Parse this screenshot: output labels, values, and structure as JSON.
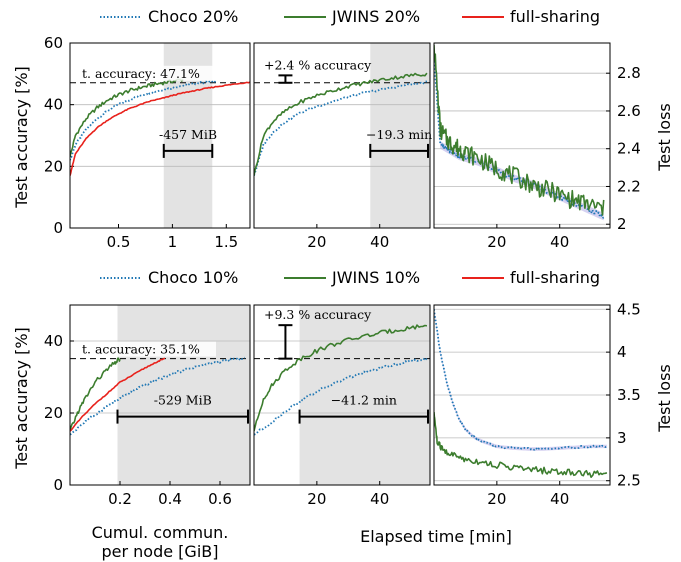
{
  "chart_data": [
    {
      "type": "line",
      "panel": "top-left",
      "xlabel": "",
      "ylabel": "Test accuracy [%]",
      "xlim": [
        0.05,
        1.72
      ],
      "ylim": [
        0,
        60
      ],
      "xticks": [
        "0.5",
        "1",
        "1.5"
      ],
      "xtick_values": [
        0.5,
        1,
        1.5
      ],
      "yticks": [
        "0",
        "20",
        "40",
        "60"
      ],
      "ytick_values": [
        0,
        20,
        40,
        60
      ],
      "grid": true,
      "series": [
        {
          "name": "Choco 20%",
          "x": [
            0.05,
            0.1,
            0.2,
            0.3,
            0.4,
            0.5,
            0.6,
            0.7,
            0.8,
            0.9,
            1.0,
            1.1,
            1.2,
            1.3,
            1.4
          ],
          "y": [
            22,
            27,
            32,
            35.5,
            38,
            40,
            41.5,
            43,
            44,
            44.8,
            45.5,
            46.2,
            46.8,
            47.2,
            47.6
          ]
        },
        {
          "name": "JWINS 20%",
          "x": [
            0.05,
            0.1,
            0.2,
            0.3,
            0.4,
            0.5,
            0.6,
            0.7,
            0.8,
            0.9,
            1.0,
            1.1
          ],
          "y": [
            23,
            30,
            35.5,
            39,
            41.5,
            43.2,
            44.5,
            45.5,
            46.3,
            47,
            47.6,
            48.2
          ]
        },
        {
          "name": "full-sharing",
          "x": [
            0.05,
            0.1,
            0.2,
            0.3,
            0.4,
            0.5,
            0.6,
            0.7,
            0.8,
            0.9,
            1.0,
            1.1,
            1.2,
            1.3,
            1.4,
            1.5,
            1.6,
            1.72
          ],
          "y": [
            17,
            24,
            29,
            32.5,
            35,
            37,
            38.7,
            40,
            41.2,
            42,
            43,
            43.8,
            44.5,
            45.2,
            45.8,
            46.3,
            46.8,
            47.3
          ]
        }
      ],
      "shade_x": [
        0.92,
        1.37
      ],
      "threshold_y": 47.1,
      "threshold_label": "t. accuracy: 47.1%",
      "savings_label": "-457 MiB",
      "savings_x": [
        0.92,
        1.37
      ],
      "savings_y": 25
    },
    {
      "type": "line",
      "panel": "top-middle",
      "xlabel": "",
      "ylabel": "",
      "xlim": [
        0,
        56
      ],
      "ylim": [
        0,
        60
      ],
      "xticks": [
        "20",
        "40"
      ],
      "xtick_values": [
        20,
        40
      ],
      "grid": true,
      "series": [
        {
          "name": "Choco 20%",
          "x": [
            0,
            3,
            6,
            10,
            15,
            20,
            25,
            30,
            35,
            40,
            45,
            50,
            55
          ],
          "y": [
            17,
            27,
            31,
            34.5,
            37.5,
            39.5,
            41,
            42.5,
            43.8,
            44.8,
            45.8,
            46.6,
            47.2
          ]
        },
        {
          "name": "JWINS 20%",
          "x": [
            0,
            3,
            6,
            10,
            15,
            20,
            25,
            30,
            35,
            40,
            45,
            50,
            55
          ],
          "y": [
            17,
            30,
            34.5,
            38,
            41,
            43,
            44.5,
            46,
            47,
            48,
            48.8,
            49.5,
            50
          ]
        }
      ],
      "shade_x": [
        37,
        56
      ],
      "threshold_y": 47.1,
      "gain_label": "+2.4 % accuracy",
      "gain_x": 10,
      "gain_y": [
        47.1,
        49.5
      ],
      "savings_label": "−19.3 min",
      "savings_x": [
        37,
        56
      ],
      "savings_y": 25
    },
    {
      "type": "line",
      "panel": "top-right",
      "xlabel": "",
      "ylabel": "Test loss",
      "xlim": [
        0,
        56
      ],
      "ylim": [
        1.98,
        2.96
      ],
      "xticks": [
        "20",
        "40"
      ],
      "xtick_values": [
        20,
        40
      ],
      "yticks": [
        "2",
        "2.2",
        "2.4",
        "2.6",
        "2.8"
      ],
      "ytick_values": [
        2,
        2.2,
        2.4,
        2.6,
        2.8
      ],
      "y_axis_side": "right",
      "grid": true,
      "series": [
        {
          "name": "Choco 20%",
          "x": [
            0,
            2,
            4,
            6,
            8,
            10,
            14,
            18,
            22,
            26,
            30,
            34,
            38,
            42,
            46,
            50,
            54
          ],
          "y": [
            2.9,
            2.42,
            2.4,
            2.38,
            2.36,
            2.35,
            2.33,
            2.3,
            2.27,
            2.24,
            2.22,
            2.19,
            2.16,
            2.13,
            2.1,
            2.07,
            2.04
          ]
        },
        {
          "name": "JWINS 20%",
          "x": [
            0,
            2,
            4,
            6,
            8,
            10,
            14,
            18,
            22,
            26,
            30,
            34,
            38,
            42,
            46,
            50,
            54
          ],
          "y": [
            2.95,
            2.5,
            2.45,
            2.42,
            2.4,
            2.38,
            2.35,
            2.31,
            2.28,
            2.25,
            2.22,
            2.19,
            2.17,
            2.14,
            2.12,
            2.1,
            2.08
          ]
        }
      ]
    },
    {
      "type": "line",
      "panel": "bottom-left",
      "xlabel": "Cumul. commun. per node [GiB]",
      "ylabel": "Test accuracy [%]",
      "xlim": [
        0.0,
        0.72
      ],
      "ylim": [
        0,
        50
      ],
      "xticks": [
        "0.2",
        "0.4",
        "0.6"
      ],
      "xtick_values": [
        0.2,
        0.4,
        0.6
      ],
      "yticks": [
        "0",
        "20",
        "40"
      ],
      "ytick_values": [
        0,
        20,
        40
      ],
      "grid": true,
      "series": [
        {
          "name": "Choco 10%",
          "x": [
            0.0,
            0.05,
            0.1,
            0.15,
            0.2,
            0.25,
            0.3,
            0.35,
            0.4,
            0.45,
            0.5,
            0.55,
            0.6,
            0.65,
            0.7
          ],
          "y": [
            14,
            17,
            19.5,
            22,
            24,
            26,
            27.8,
            29.3,
            30.6,
            31.8,
            32.8,
            33.6,
            34.3,
            34.8,
            35.2
          ]
        },
        {
          "name": "JWINS 10%",
          "x": [
            0.0,
            0.03,
            0.06,
            0.1,
            0.14,
            0.18,
            0.2
          ],
          "y": [
            15,
            20,
            24,
            28.5,
            31.5,
            34,
            35.1
          ]
        },
        {
          "name": "full-sharing",
          "x": [
            0.0,
            0.05,
            0.1,
            0.15,
            0.2,
            0.25,
            0.3,
            0.35,
            0.38
          ],
          "y": [
            15,
            19,
            22.5,
            25.5,
            28.5,
            30.5,
            32.5,
            34.3,
            35.1
          ]
        }
      ],
      "shade_x": [
        0.19,
        0.72
      ],
      "threshold_y": 35.1,
      "threshold_label": "t. accuracy: 35.1%",
      "savings_label": "-529 MiB",
      "savings_x": [
        0.19,
        0.72
      ],
      "savings_y": 19
    },
    {
      "type": "line",
      "panel": "bottom-middle",
      "xlabel": "Elapsed time [min]",
      "ylabel": "",
      "xlim": [
        0,
        56
      ],
      "ylim": [
        0,
        50
      ],
      "xticks": [
        "20",
        "40"
      ],
      "xtick_values": [
        20,
        40
      ],
      "grid": true,
      "series": [
        {
          "name": "Choco 10%",
          "x": [
            0,
            5,
            10,
            15,
            20,
            25,
            30,
            35,
            40,
            45,
            50,
            55
          ],
          "y": [
            14,
            17,
            20.5,
            23.5,
            26,
            28,
            29.8,
            31.2,
            32.4,
            33.5,
            34.4,
            35.1
          ]
        },
        {
          "name": "JWINS 10%",
          "x": [
            0,
            3,
            6,
            10,
            15,
            20,
            25,
            30,
            35,
            40,
            45,
            50,
            55
          ],
          "y": [
            15,
            24,
            28,
            32,
            35.2,
            37.3,
            39,
            40.3,
            41.3,
            42.2,
            43,
            43.7,
            44.4
          ]
        }
      ],
      "shade_x": [
        14.5,
        56
      ],
      "threshold_y": 35.1,
      "gain_label": "+9.3 % accuracy",
      "gain_x": 10,
      "gain_y": [
        35.1,
        44.4
      ],
      "savings_label": "−41.2 min",
      "savings_x": [
        14.5,
        56
      ],
      "savings_y": 19
    },
    {
      "type": "line",
      "panel": "bottom-right",
      "xlabel": "",
      "ylabel": "Test loss",
      "xlim": [
        0,
        56
      ],
      "ylim": [
        2.45,
        4.55
      ],
      "xticks": [
        "20",
        "40"
      ],
      "xtick_values": [
        20,
        40
      ],
      "yticks": [
        "2.5",
        "3",
        "3.5",
        "4",
        "4.5"
      ],
      "ytick_values": [
        2.5,
        3,
        3.5,
        4,
        4.5
      ],
      "y_axis_side": "right",
      "grid": true,
      "series": [
        {
          "name": "Choco 10%",
          "x": [
            0,
            2,
            4,
            6,
            8,
            10,
            13,
            16,
            20,
            25,
            30,
            35,
            40,
            45,
            50,
            55
          ],
          "y": [
            4.5,
            4.0,
            3.65,
            3.4,
            3.22,
            3.1,
            3.0,
            2.95,
            2.9,
            2.88,
            2.87,
            2.87,
            2.88,
            2.89,
            2.9,
            2.9
          ]
        },
        {
          "name": "JWINS 10%",
          "x": [
            0,
            1,
            3,
            6,
            10,
            15,
            20,
            25,
            30,
            35,
            40,
            45,
            50,
            55
          ],
          "y": [
            3.3,
            2.95,
            2.85,
            2.8,
            2.75,
            2.72,
            2.68,
            2.66,
            2.63,
            2.62,
            2.6,
            2.6,
            2.58,
            2.57
          ]
        }
      ]
    }
  ],
  "legend_top": [
    {
      "label": "Choco 20%",
      "color": "#1f77b4",
      "style": "dotted"
    },
    {
      "label": "JWINS 20%",
      "color": "#3c7d2e",
      "style": "solid"
    },
    {
      "label": "full-sharing",
      "color": "#e8221c",
      "style": "solid"
    }
  ],
  "legend_bottom": [
    {
      "label": "Choco 10%",
      "color": "#1f77b4",
      "style": "dotted"
    },
    {
      "label": "JWINS 10%",
      "color": "#3c7d2e",
      "style": "solid"
    },
    {
      "label": "full-sharing",
      "color": "#e8221c",
      "style": "solid"
    }
  ],
  "colors": {
    "choco": "#1f77b4",
    "jwins": "#3c7d2e",
    "full": "#e8221c",
    "shade": "#e3e3e3"
  },
  "labels": {
    "ylabel_acc_top": "Test accuracy [%]",
    "ylabel_acc_bottom": "Test accuracy [%]",
    "ylabel_loss_top": "Test loss",
    "ylabel_loss_bottom": "Test loss",
    "xlabel_comm_line1": "Cumul. commun.",
    "xlabel_comm_line2": "per node [GiB]",
    "xlabel_time": "Elapsed time [min]"
  }
}
